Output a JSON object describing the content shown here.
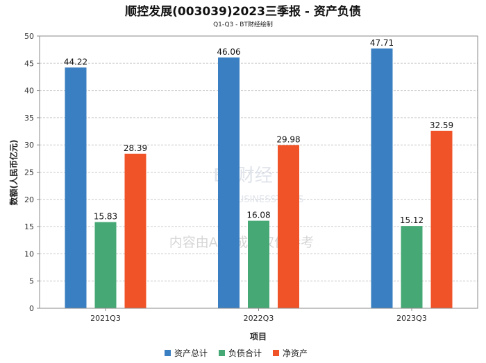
{
  "chart_data": {
    "type": "bar",
    "title": "顺控发展(003039)2023三季报 - 资产负债",
    "subtitle": "Q1-Q3 - BT财经绘制",
    "xlabel": "项目",
    "ylabel": "数额(人民币亿元)",
    "ylim": [
      0,
      50
    ],
    "yticks": [
      0,
      5,
      10,
      15,
      20,
      25,
      30,
      35,
      40,
      45,
      50
    ],
    "categories": [
      "2021Q3",
      "2022Q3",
      "2023Q3"
    ],
    "series": [
      {
        "name": "资产总计",
        "color": "#3a7fc1",
        "values": [
          44.22,
          46.06,
          47.71
        ]
      },
      {
        "name": "负债合计",
        "color": "#46a874",
        "values": [
          15.83,
          16.08,
          15.12
        ]
      },
      {
        "name": "净资产",
        "color": "#f05327",
        "values": [
          28.39,
          29.98,
          32.59
        ]
      }
    ],
    "grid": true,
    "legend": "bottom-center"
  },
  "watermark": {
    "logo": "BT财经",
    "logo_sub": "BUSINESSTIMES",
    "text": "内容由AI生成，仅供参考"
  }
}
